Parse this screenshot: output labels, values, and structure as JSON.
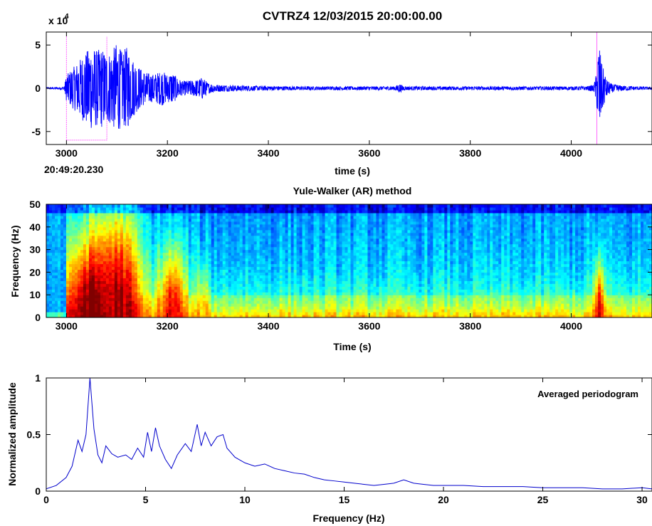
{
  "figure_title": "CVTRZ4 12/03/2015  20:00:00.00",
  "chart_data": [
    {
      "type": "line",
      "panel": "waveform",
      "title": "CVTRZ4 12/03/2015  20:00:00.00",
      "xlabel": "time (s)",
      "ylabel": "",
      "y_exponent_label": "x 10",
      "y_exponent_power": "4",
      "start_time_label": "20:49:20.230",
      "xlim": [
        2960,
        4160
      ],
      "ylim": [
        -6.5,
        6.5
      ],
      "xticks": [
        3000,
        3200,
        3400,
        3600,
        3800,
        4000
      ],
      "yticks": [
        -5,
        0,
        5
      ],
      "line_color": "#0000ff",
      "pick_marker_color": "#ff66ff",
      "pick_window": {
        "start": 3000,
        "end": 3080,
        "low": -6,
        "high": 6
      },
      "pick_marker_2": 4055,
      "envelope": {
        "x": [
          2960,
          2995,
          3000,
          3010,
          3020,
          3030,
          3040,
          3050,
          3060,
          3070,
          3080,
          3090,
          3100,
          3110,
          3120,
          3130,
          3140,
          3150,
          3160,
          3170,
          3180,
          3190,
          3200,
          3210,
          3220,
          3230,
          3240,
          3250,
          3260,
          3270,
          3280,
          3300,
          3350,
          3400,
          3450,
          3500,
          3550,
          3600,
          3650,
          3660,
          3670,
          3700,
          3750,
          3800,
          3850,
          3900,
          3950,
          4000,
          4030,
          4045,
          4050,
          4055,
          4060,
          4065,
          4070,
          4080,
          4100,
          4130,
          4160
        ],
        "amplitude": [
          0.1,
          0.15,
          1.5,
          2.2,
          2.8,
          3.6,
          4.3,
          4.8,
          4.4,
          4.6,
          4.0,
          4.3,
          5.3,
          4.2,
          4.8,
          3.5,
          2.7,
          2.1,
          1.8,
          1.6,
          1.8,
          2.0,
          1.6,
          1.8,
          1.2,
          0.8,
          0.9,
          0.9,
          1.0,
          1.3,
          0.6,
          0.4,
          0.3,
          0.25,
          0.22,
          0.2,
          0.2,
          0.2,
          0.22,
          0.5,
          0.22,
          0.2,
          0.2,
          0.2,
          0.2,
          0.2,
          0.2,
          0.2,
          0.22,
          0.4,
          1.8,
          5.5,
          3.0,
          2.0,
          1.0,
          0.5,
          0.3,
          0.2,
          0.15
        ]
      }
    },
    {
      "type": "heatmap",
      "panel": "spectrogram",
      "title": "Yule-Walker (AR) method",
      "xlabel": "Time (s)",
      "ylabel": "Frequency (Hz)",
      "xlim": [
        2960,
        4160
      ],
      "ylim": [
        0,
        50
      ],
      "xticks": [
        3000,
        3200,
        3400,
        3600,
        3800,
        4000
      ],
      "yticks": [
        0,
        10,
        20,
        30,
        40,
        50
      ],
      "colormap": "jet",
      "energy_events": [
        {
          "t": 3050,
          "width": 55,
          "fmax": 36,
          "peak": 1.0
        },
        {
          "t": 3105,
          "width": 45,
          "fmax": 42,
          "peak": 0.95
        },
        {
          "t": 3210,
          "width": 30,
          "fmax": 28,
          "peak": 0.85
        },
        {
          "t": 3270,
          "width": 10,
          "fmax": 18,
          "peak": 0.7
        },
        {
          "t": 4055,
          "width": 10,
          "fmax": 22,
          "peak": 0.9
        }
      ]
    },
    {
      "type": "line",
      "panel": "periodogram",
      "title": "",
      "xlabel": "Frequency (Hz)",
      "ylabel": "Normalized amplitude",
      "annotation": "Averaged periodogram",
      "xlim": [
        0,
        30.5
      ],
      "ylim": [
        0,
        1
      ],
      "xticks": [
        0,
        5,
        10,
        15,
        20,
        25,
        30
      ],
      "yticks": [
        0,
        0.5,
        1
      ],
      "ytick_labels": [
        "0",
        "0.5",
        "1"
      ],
      "line_color": "#0000cc",
      "x": [
        0,
        0.5,
        1,
        1.3,
        1.6,
        1.8,
        2.0,
        2.1,
        2.2,
        2.4,
        2.6,
        2.8,
        3.0,
        3.3,
        3.6,
        4.0,
        4.3,
        4.6,
        4.9,
        5.1,
        5.3,
        5.5,
        5.7,
        6.0,
        6.3,
        6.6,
        7.0,
        7.3,
        7.6,
        7.8,
        8.0,
        8.3,
        8.6,
        8.9,
        9.1,
        9.5,
        10,
        10.5,
        11,
        11.5,
        12,
        12.5,
        13,
        13.5,
        14,
        14.5,
        15,
        15.5,
        16,
        16.5,
        17,
        17.5,
        18,
        18.5,
        19,
        19.5,
        20,
        21,
        22,
        23,
        24,
        25,
        26,
        27,
        28,
        29,
        30,
        30.5
      ],
      "y": [
        0.02,
        0.05,
        0.12,
        0.22,
        0.45,
        0.35,
        0.5,
        0.75,
        1.0,
        0.55,
        0.32,
        0.25,
        0.4,
        0.33,
        0.3,
        0.32,
        0.28,
        0.38,
        0.3,
        0.52,
        0.35,
        0.56,
        0.4,
        0.28,
        0.2,
        0.32,
        0.42,
        0.35,
        0.59,
        0.4,
        0.52,
        0.4,
        0.48,
        0.5,
        0.38,
        0.3,
        0.25,
        0.22,
        0.24,
        0.2,
        0.18,
        0.16,
        0.15,
        0.12,
        0.1,
        0.09,
        0.08,
        0.07,
        0.06,
        0.05,
        0.06,
        0.07,
        0.1,
        0.07,
        0.06,
        0.05,
        0.05,
        0.05,
        0.04,
        0.04,
        0.04,
        0.03,
        0.03,
        0.03,
        0.02,
        0.02,
        0.03,
        0.02
      ]
    }
  ]
}
